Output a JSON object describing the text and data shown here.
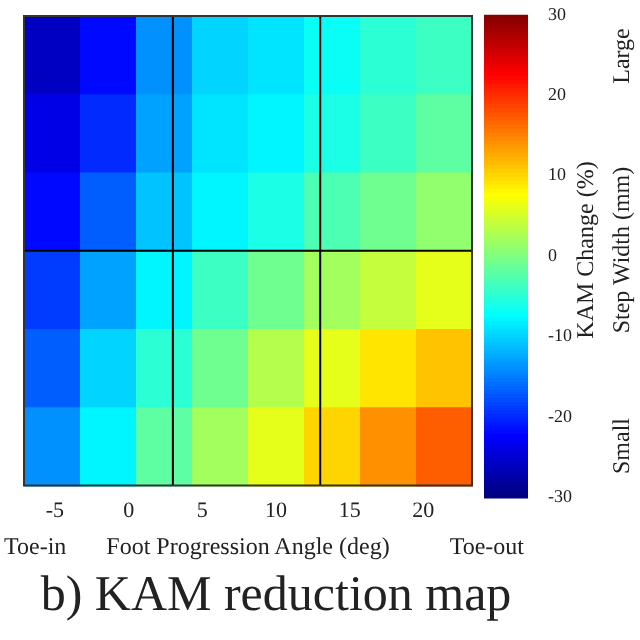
{
  "chart_data": {
    "type": "heatmap",
    "title": "b) KAM reduction map",
    "xlabel": "Foot Progression Angle (deg)",
    "clabel": "KAM Change (%)",
    "annotations": [
      "Toe-in",
      "Toe-out",
      "Step Width (mm)"
    ],
    "x": [
      -5.2,
      -1.4,
      2.4,
      6.2,
      10,
      13.8,
      17.6,
      21.4
    ],
    "xlim": [
      -7.1,
      23.3
    ],
    "xticks": [
      -5,
      0,
      5,
      10,
      15,
      20
    ],
    "y_categories": [
      null,
      null,
      null,
      null,
      null,
      null
    ],
    "y2_categories": [
      "Large",
      null,
      null,
      null,
      null,
      "Small"
    ],
    "cells": [
      [
        -26,
        -22,
        -14,
        -10,
        -9,
        -7,
        -5,
        -4
      ],
      [
        -24,
        -20,
        -13,
        -9,
        -8,
        -6,
        -4,
        -2
      ],
      [
        -22,
        -17,
        -11,
        -8,
        -6,
        -3,
        -1,
        1
      ],
      [
        -19,
        -13,
        -8,
        -4,
        -1,
        2,
        4,
        6
      ],
      [
        -17,
        -10,
        -5,
        -1,
        3,
        6,
        9,
        11
      ],
      [
        -14,
        -8,
        -2,
        2,
        6,
        10,
        14,
        17
      ]
    ],
    "clim": [
      -30,
      30
    ],
    "cticks": [
      -30,
      -20,
      -10,
      0,
      10,
      20,
      30
    ],
    "ref_lines": [
      {
        "axis": "x",
        "value": 3,
        "color": "#000000"
      },
      {
        "axis": "x",
        "value": 13,
        "color": "#000000"
      }
    ],
    "grid": false,
    "legend": false
  }
}
